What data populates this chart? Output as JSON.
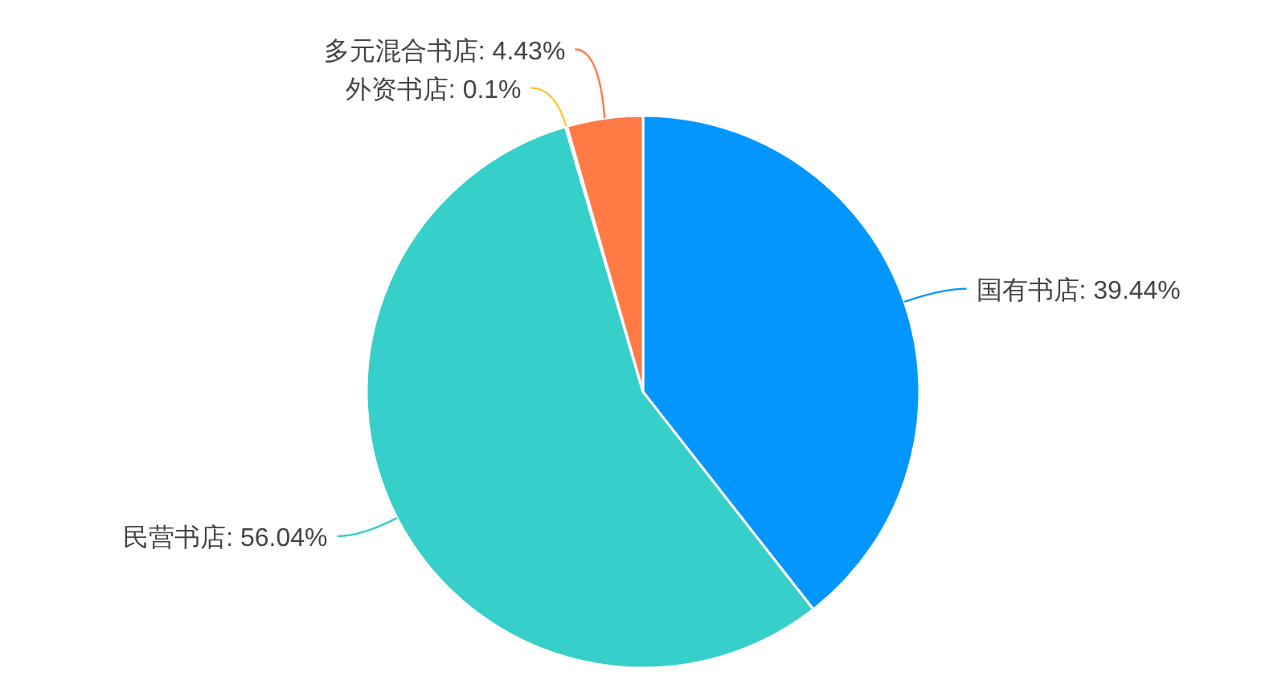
{
  "chart_data": {
    "type": "pie",
    "categories": [
      "国有书店",
      "民营书店",
      "外资书店",
      "多元混合书店"
    ],
    "values": [
      39.44,
      56.04,
      0.1,
      4.43
    ],
    "colors": [
      "#0396ff",
      "#36cfc9",
      "#ffc53d",
      "#ff7a45"
    ],
    "value_labels": [
      ": 39.44%",
      ": 56.04%",
      ": 0.1%",
      ": 4.43%"
    ],
    "legend": false
  }
}
